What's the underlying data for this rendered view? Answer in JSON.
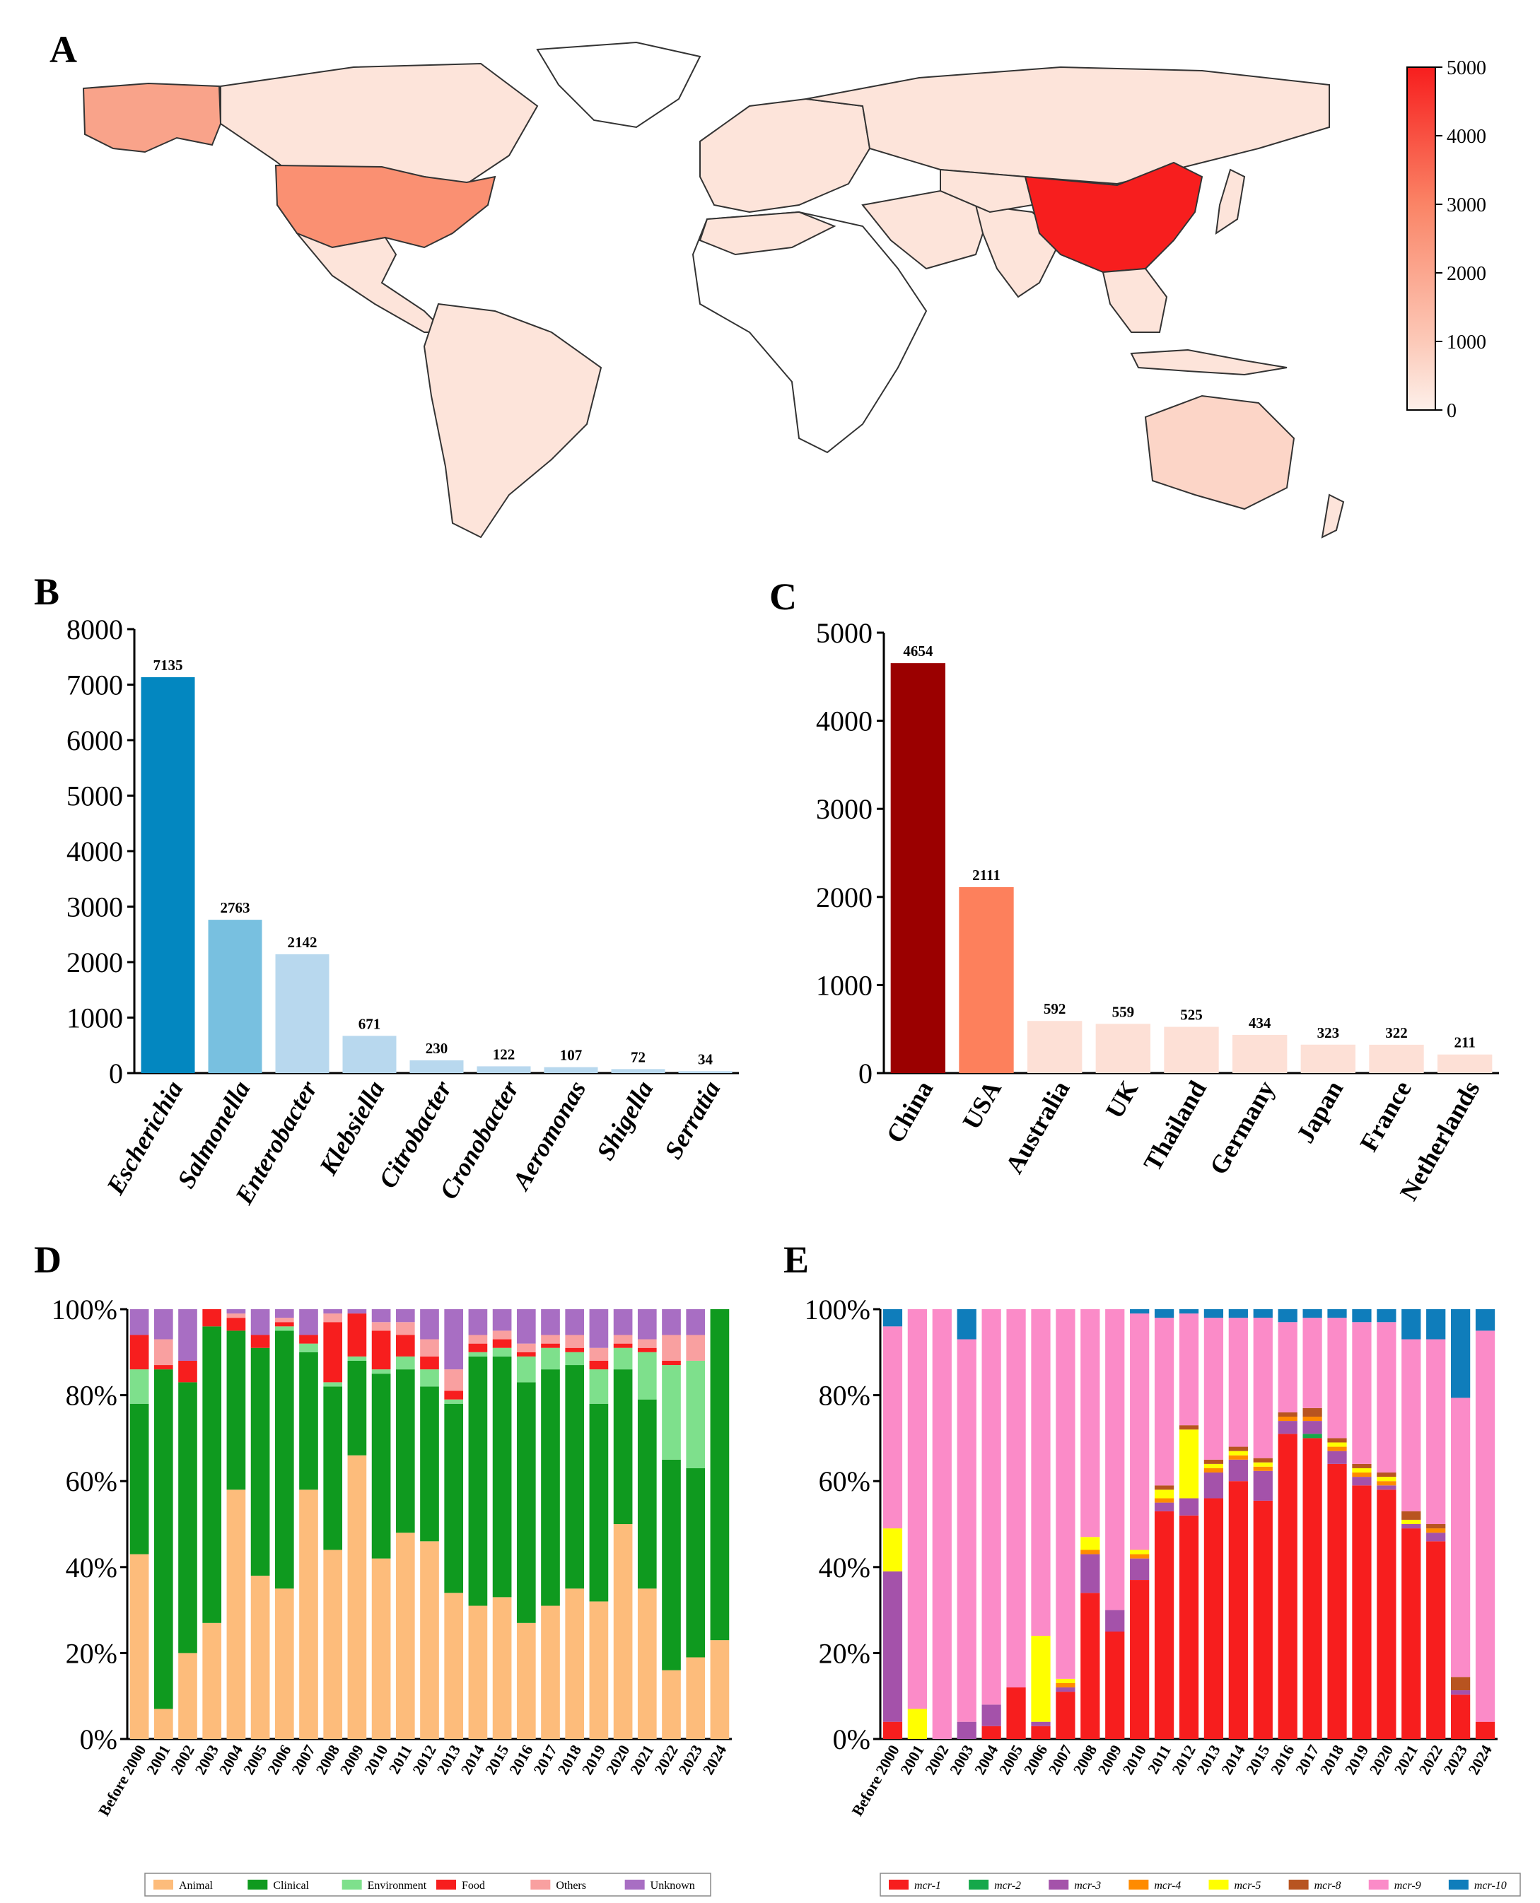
{
  "panels": {
    "A": "A",
    "B": "B",
    "C": "C",
    "D": "D",
    "E": "E"
  },
  "colors": {
    "escherichia": "#0387c0",
    "salmonella": "#78c0e0",
    "light_blue": "#b8d8ee",
    "china": "#9b0000",
    "usa": "#fd805c",
    "light_peach": "#fde0d6",
    "animal": "#fdbc7b",
    "clinical": "#0f9a1f",
    "environment": "#7ee08c",
    "food": "#f71e1e",
    "others": "#f9a0a0",
    "unknown": "#a86ec3",
    "mcr1": "#f71e1e",
    "mcr2": "#15a84a",
    "mcr3": "#a452aa",
    "mcr4": "#ff8b00",
    "mcr5": "#ffff00",
    "mcr8": "#b85420",
    "mcr9": "#fb8bc8",
    "mcr10": "#0f7dbb"
  },
  "chart_data": [
    {
      "panel": "A",
      "type": "heatmap",
      "title": "",
      "description_kind": "choropleth world map",
      "colorbar": {
        "min": 0,
        "max": 5000,
        "ticks": [
          "0",
          "1000",
          "2000",
          "3000",
          "4000",
          "5000"
        ],
        "low_color": "#fdf0ea",
        "high_color": "#f71e1e"
      },
      "highlighted_regions": [
        {
          "name": "China",
          "value": 4654
        },
        {
          "name": "USA",
          "value": 2111
        },
        {
          "name": "Australia",
          "value": 592
        }
      ]
    },
    {
      "panel": "B",
      "type": "bar",
      "title": "",
      "categories": [
        "Escherichia",
        "Salmonella",
        "Enterobacter",
        "Klebsiella",
        "Citrobacter",
        "Cronobacter",
        "Aeromonas",
        "Shigella",
        "Serratia"
      ],
      "values": [
        7135,
        2763,
        2142,
        671,
        230,
        122,
        107,
        72,
        34
      ],
      "value_labels": [
        "7135",
        "2763",
        "2142",
        "671",
        "230",
        "122",
        "107",
        "72",
        "34"
      ],
      "ylim": [
        0,
        8000
      ],
      "yticks": [
        "0",
        "1000",
        "2000",
        "3000",
        "4000",
        "5000",
        "6000",
        "7000",
        "8000"
      ],
      "yticks_values": [
        0,
        1000,
        2000,
        3000,
        4000,
        5000,
        6000,
        7000,
        8000
      ]
    },
    {
      "panel": "C",
      "type": "bar",
      "title": "",
      "categories": [
        "China",
        "USA",
        "Australia",
        "UK",
        "Thailand",
        "Germany",
        "Japan",
        "France",
        "Netherlands"
      ],
      "values": [
        4654,
        2111,
        592,
        559,
        525,
        434,
        323,
        322,
        211
      ],
      "value_labels": [
        "4654",
        "2111",
        "592",
        "559",
        "525",
        "434",
        "323",
        "322",
        "211"
      ],
      "ylim": [
        0,
        5000
      ],
      "yticks": [
        "0",
        "1000",
        "2000",
        "3000",
        "4000",
        "5000"
      ],
      "yticks_values": [
        0,
        1000,
        2000,
        3000,
        4000,
        5000
      ]
    },
    {
      "panel": "D",
      "type": "bar",
      "stacked": true,
      "title": "",
      "ylim": [
        0,
        100
      ],
      "yticks": [
        "0%",
        "20%",
        "40%",
        "60%",
        "80%",
        "100%"
      ],
      "categories": [
        "Before 2000",
        "2001",
        "2002",
        "2003",
        "2004",
        "2005",
        "2006",
        "2007",
        "2008",
        "2009",
        "2010",
        "2011",
        "2012",
        "2013",
        "2014",
        "2015",
        "2016",
        "2017",
        "2018",
        "2019",
        "2020",
        "2021",
        "2022",
        "2023",
        "2024"
      ],
      "series": [
        {
          "name": "Animal",
          "color_key": "animal",
          "values": [
            43,
            7,
            20,
            27,
            58,
            38,
            35,
            58,
            44,
            66,
            42,
            48,
            46,
            34,
            31,
            33,
            27,
            31,
            35,
            32,
            50,
            35,
            16,
            19,
            23
          ]
        },
        {
          "name": "Clinical",
          "color_key": "clinical",
          "values": [
            35,
            79,
            63,
            69,
            37,
            53,
            60,
            32,
            38,
            22,
            43,
            38,
            36,
            44,
            58,
            56,
            56,
            55,
            52,
            46,
            36,
            44,
            49,
            44,
            77
          ]
        },
        {
          "name": "Environment",
          "color_key": "environment",
          "values": [
            8,
            0,
            0,
            0,
            0,
            0,
            1,
            2,
            1,
            1,
            1,
            3,
            4,
            1,
            1,
            2,
            6,
            5,
            3,
            8,
            5,
            11,
            22,
            25,
            0
          ]
        },
        {
          "name": "Food",
          "color_key": "food",
          "values": [
            8,
            1,
            5,
            4,
            3,
            3,
            1,
            2,
            14,
            10,
            9,
            5,
            3,
            2,
            2,
            2,
            1,
            1,
            1,
            2,
            1,
            1,
            1,
            0,
            0
          ]
        },
        {
          "name": "Others",
          "color_key": "others",
          "values": [
            0,
            6,
            0,
            0,
            1,
            0,
            1,
            0,
            2,
            0,
            2,
            3,
            4,
            5,
            2,
            2,
            2,
            2,
            3,
            3,
            2,
            2,
            6,
            6,
            0
          ]
        },
        {
          "name": "Unknown",
          "color_key": "unknown",
          "values": [
            6,
            7,
            12,
            0,
            1,
            6,
            2,
            6,
            1,
            1,
            3,
            3,
            7,
            14,
            6,
            5,
            8,
            6,
            6,
            9,
            6,
            7,
            6,
            6,
            0
          ]
        }
      ]
    },
    {
      "panel": "E",
      "type": "bar",
      "stacked": true,
      "title": "",
      "ylim": [
        0,
        100
      ],
      "yticks": [
        "0%",
        "20%",
        "40%",
        "60%",
        "80%",
        "100%"
      ],
      "categories": [
        "Before 2000",
        "2001",
        "2002",
        "2003",
        "2004",
        "2005",
        "2006",
        "2007",
        "2008",
        "2009",
        "2010",
        "2011",
        "2012",
        "2013",
        "2014",
        "2015",
        "2016",
        "2017",
        "2018",
        "2019",
        "2020",
        "2021",
        "2022",
        "2023",
        "2024"
      ],
      "series": [
        {
          "name": "mcr-1",
          "color_key": "mcr1",
          "values": [
            4,
            0,
            0,
            0,
            3,
            12,
            3,
            11,
            34,
            25,
            37,
            53,
            52,
            56,
            60,
            56,
            71,
            70,
            64,
            59,
            58,
            49,
            46,
            10,
            4
          ]
        },
        {
          "name": "mcr-2",
          "color_key": "mcr2",
          "values": [
            0,
            0,
            0,
            0,
            0,
            0,
            0,
            0,
            0,
            0,
            0,
            0,
            0,
            0,
            0,
            0,
            0,
            1,
            0,
            0,
            0,
            0,
            0,
            0,
            0
          ]
        },
        {
          "name": "mcr-3",
          "color_key": "mcr3",
          "values": [
            35,
            0,
            0,
            4,
            5,
            0,
            1,
            1,
            9,
            5,
            5,
            2,
            4,
            6,
            5,
            7,
            3,
            3,
            3,
            2,
            1,
            1,
            2,
            1,
            0
          ]
        },
        {
          "name": "mcr-4",
          "color_key": "mcr4",
          "values": [
            0,
            0,
            0,
            0,
            0,
            0,
            0,
            1,
            1,
            0,
            1,
            1,
            0,
            1,
            1,
            1,
            1,
            1,
            1,
            1,
            1,
            0,
            1,
            0,
            0
          ]
        },
        {
          "name": "mcr-5",
          "color_key": "mcr5",
          "values": [
            10,
            7,
            0,
            0,
            0,
            0,
            20,
            1,
            3,
            0,
            1,
            2,
            16,
            1,
            1,
            1,
            0,
            0,
            1,
            1,
            1,
            1,
            0,
            0,
            0
          ]
        },
        {
          "name": "mcr-8",
          "color_key": "mcr8",
          "values": [
            0,
            0,
            0,
            0,
            0,
            0,
            0,
            0,
            0,
            0,
            0,
            1,
            1,
            1,
            1,
            1,
            1,
            2,
            1,
            1,
            1,
            2,
            1,
            3,
            0
          ]
        },
        {
          "name": "mcr-9",
          "color_key": "mcr9",
          "values": [
            47,
            93,
            100,
            89,
            92,
            88,
            76,
            86,
            53,
            70,
            55,
            39,
            26,
            33,
            30,
            33,
            21,
            21,
            28,
            33,
            35,
            40,
            43,
            63,
            91
          ]
        },
        {
          "name": "mcr-10",
          "color_key": "mcr10",
          "values": [
            4,
            0,
            0,
            7,
            0,
            0,
            0,
            0,
            0,
            0,
            1,
            2,
            1,
            2,
            2,
            2,
            3,
            2,
            2,
            3,
            3,
            7,
            7,
            20,
            5
          ]
        }
      ]
    }
  ],
  "legends": {
    "D": [
      "Animal",
      "Clinical",
      "Environment",
      "Food",
      "Others",
      "Unknown"
    ],
    "E": [
      "mcr-1",
      "mcr-2",
      "mcr-3",
      "mcr-4",
      "mcr-5",
      "mcr-8",
      "mcr-9",
      "mcr-10"
    ]
  }
}
